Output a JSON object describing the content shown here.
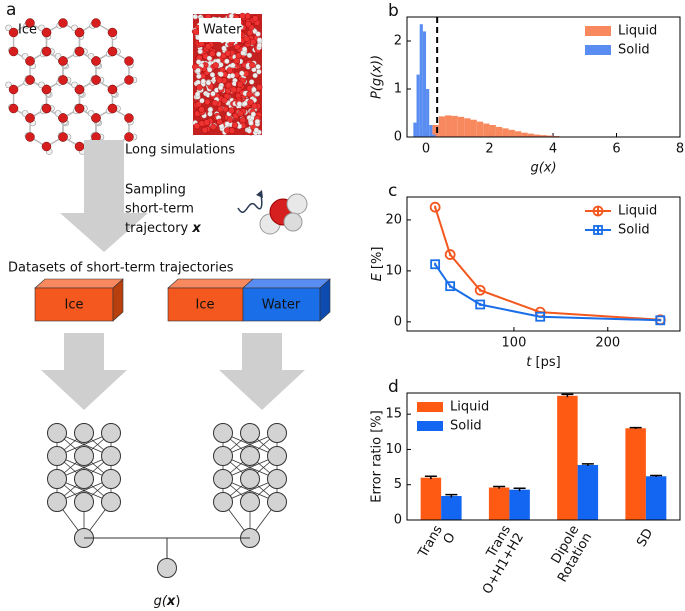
{
  "panel_a": {
    "label": "a",
    "ice": "Ice",
    "water": "Water",
    "long_simulations": "Long simulations",
    "sampling": [
      "Sampling",
      "short-term",
      "trajectory "
    ],
    "trajectory_symbol": "x",
    "datasets_title": "Datasets of short-term trajectories",
    "left_box": "Ice",
    "right_box": [
      "Ice",
      "Water"
    ],
    "output": [
      "g(",
      "x",
      ")"
    ]
  },
  "chart_data": [
    {
      "type": "histogram",
      "panel_label": "b",
      "xlabel": "g(x)",
      "ylabel": "P(g(x))",
      "xlim": [
        -0.6,
        8
      ],
      "ylim": [
        0,
        2.5
      ],
      "xticks": [
        0,
        2,
        4,
        6,
        8
      ],
      "yticks": [
        0,
        1,
        2
      ],
      "legend": "upper right",
      "threshold": 0.35,
      "series": [
        {
          "name": "Liquid",
          "color": "#f8895f",
          "bins": [
            0.2,
            0.4,
            0.6,
            0.8,
            1.0,
            1.2,
            1.4,
            1.6,
            1.8,
            2.0,
            2.2,
            2.4,
            2.6,
            2.8,
            3.0,
            3.2,
            3.4,
            3.6,
            3.8,
            4.0,
            4.2,
            4.4,
            4.6
          ],
          "values": [
            0.25,
            0.43,
            0.45,
            0.44,
            0.42,
            0.39,
            0.36,
            0.32,
            0.28,
            0.25,
            0.21,
            0.18,
            0.15,
            0.12,
            0.09,
            0.07,
            0.05,
            0.04,
            0.03,
            0.02,
            0.01,
            0.005
          ]
        },
        {
          "name": "Solid",
          "color": "#5a8df2",
          "bins": [
            -0.4,
            -0.3,
            -0.2,
            -0.1,
            0.0,
            0.1,
            0.2,
            0.3
          ],
          "values": [
            0.3,
            1.3,
            2.35,
            2.2,
            1.0,
            0.25,
            0.05
          ]
        }
      ]
    },
    {
      "type": "line",
      "panel_label": "c",
      "xlabel": {
        "symbol": "t",
        "unit": "[ps]"
      },
      "ylabel": {
        "symbol": "E",
        "unit": "[%]"
      },
      "xlim": [
        -14,
        277
      ],
      "ylim": [
        -1.8,
        24.5
      ],
      "xticks": [
        100,
        200
      ],
      "yticks": [
        0,
        10,
        20
      ],
      "legend": "upper right",
      "x": [
        16,
        32,
        64,
        128,
        256
      ],
      "series": [
        {
          "name": "Liquid",
          "color": "#f4581e",
          "marker": "circle",
          "values": [
            22.5,
            13.2,
            6.2,
            1.9,
            0.4
          ],
          "errors": [
            0.3,
            0.3,
            0.3,
            0.2,
            0.2
          ]
        },
        {
          "name": "Solid",
          "color": "#1a6fe8",
          "marker": "square",
          "values": [
            11.3,
            7.0,
            3.4,
            1.0,
            0.3
          ],
          "errors": [
            0.3,
            0.3,
            0.3,
            0.2,
            0.2
          ]
        }
      ]
    },
    {
      "type": "bar",
      "panel_label": "d",
      "ylabel": "Error ratio [%]",
      "categories": [
        "Trans\nO",
        "Trans\nO+H1+H2",
        "Dipole\nRotation",
        "SD"
      ],
      "ylim": [
        0,
        18
      ],
      "yticks": [
        0,
        5,
        10,
        15
      ],
      "legend": "upper left",
      "series": [
        {
          "name": "Liquid",
          "color": "#ff5a14",
          "values": [
            6.0,
            4.6,
            17.6,
            13.0
          ],
          "errors": [
            0.2,
            0.15,
            0.2,
            0.1
          ]
        },
        {
          "name": "Solid",
          "color": "#1266f1",
          "values": [
            3.4,
            4.3,
            7.8,
            6.2
          ],
          "errors": [
            0.2,
            0.2,
            0.15,
            0.1
          ]
        }
      ]
    }
  ]
}
